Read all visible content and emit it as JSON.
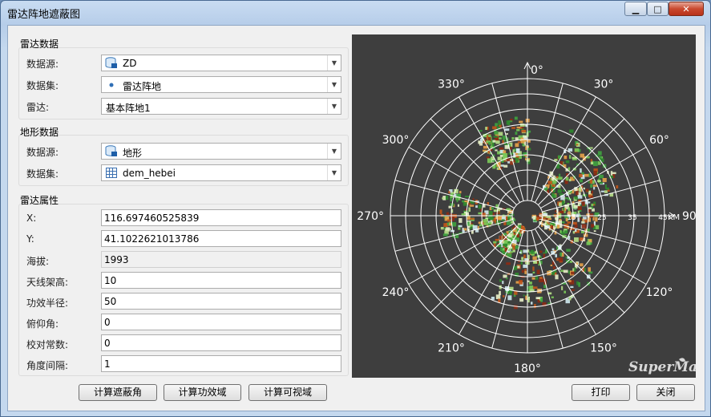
{
  "window": {
    "title": "雷达阵地遮蔽图"
  },
  "radar_data": {
    "heading": "雷达数据",
    "datasource_label": "数据源:",
    "datasource_value": "ZD",
    "dataset_label": "数据集:",
    "dataset_value": "雷达阵地",
    "radar_label": "雷达:",
    "radar_value": "基本阵地1"
  },
  "terrain_data": {
    "heading": "地形数据",
    "datasource_label": "数据源:",
    "datasource_value": "地形",
    "dataset_label": "数据集:",
    "dataset_value": "dem_hebei"
  },
  "radar_attrs": {
    "heading": "雷达属性",
    "fields": [
      {
        "label": "X:",
        "value": "116.697460525839"
      },
      {
        "label": "Y:",
        "value": "41.1022621013786"
      },
      {
        "label": "海拔:",
        "value": "1993"
      },
      {
        "label": "天线架高:",
        "value": "10"
      },
      {
        "label": "功效半径:",
        "value": "50"
      },
      {
        "label": "俯仰角:",
        "value": "0"
      },
      {
        "label": "校对常数:",
        "value": "0"
      },
      {
        "label": "角度间隔:",
        "value": "1"
      }
    ]
  },
  "buttons": {
    "calc_mask_angle": "计算遮蔽角",
    "calc_effective_area": "计算功效域",
    "calc_visible_area": "计算可视域",
    "print": "打印",
    "close": "关闭"
  },
  "polar_chart": {
    "angle_labels": [
      "0°",
      "30°",
      "60°",
      "90°",
      "120°",
      "150°",
      "180°",
      "210°",
      "240°",
      "270°",
      "300°",
      "330°"
    ],
    "range_labels": [
      "5",
      "15",
      "25",
      "35",
      "45"
    ],
    "range_unit": "KM",
    "watermark": "SuperMap",
    "colors": {
      "background": "#3e3e3e",
      "grid": "#ffffff"
    }
  }
}
